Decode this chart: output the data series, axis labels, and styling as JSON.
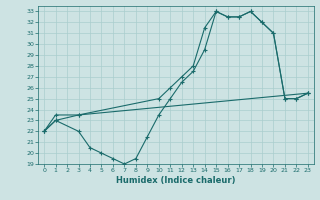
{
  "xlabel": "Humidex (Indice chaleur)",
  "xlim": [
    -0.5,
    23.5
  ],
  "ylim": [
    19,
    33.5
  ],
  "yticks": [
    19,
    20,
    21,
    22,
    23,
    24,
    25,
    26,
    27,
    28,
    29,
    30,
    31,
    32,
    33
  ],
  "xticks": [
    0,
    1,
    2,
    3,
    4,
    5,
    6,
    7,
    8,
    9,
    10,
    11,
    12,
    13,
    14,
    15,
    16,
    17,
    18,
    19,
    20,
    21,
    22,
    23
  ],
  "bg_color": "#cde3e3",
  "grid_color": "#aacece",
  "line_color": "#1a6b6b",
  "line1": {
    "x": [
      0,
      1,
      3,
      4,
      5,
      6,
      7,
      8,
      9,
      10,
      11,
      12,
      13,
      14,
      15,
      16,
      17,
      18,
      19,
      20,
      21,
      22,
      23
    ],
    "y": [
      22,
      23,
      22,
      20.5,
      20,
      19.5,
      19,
      19.5,
      21.5,
      23.5,
      25,
      26.5,
      27.5,
      29.5,
      33,
      32.5,
      32.5,
      33,
      32,
      31,
      25,
      25,
      25.5
    ]
  },
  "line2": {
    "x": [
      0,
      1,
      3,
      10,
      11,
      12,
      13,
      14,
      15,
      16,
      17,
      18,
      19,
      20,
      21,
      22,
      23
    ],
    "y": [
      22,
      23,
      23.5,
      25,
      26,
      27,
      28,
      31.5,
      33,
      32.5,
      32.5,
      33,
      32,
      31,
      25,
      25,
      25.5
    ]
  },
  "line3": {
    "x": [
      0,
      1,
      3,
      23
    ],
    "y": [
      22,
      23.5,
      23.5,
      25.5
    ]
  }
}
